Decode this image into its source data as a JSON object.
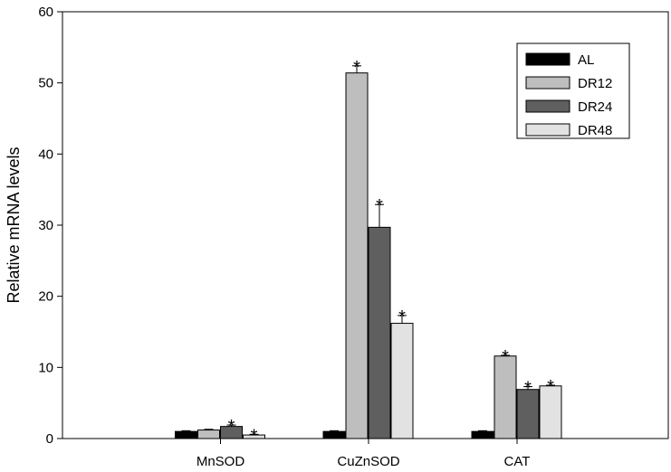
{
  "chart_data": {
    "type": "bar",
    "title": "",
    "xlabel": "",
    "ylabel": "Relative mRNA levels",
    "ylim": [
      0,
      60
    ],
    "yticks": [
      0,
      10,
      20,
      30,
      40,
      50,
      60
    ],
    "grid": false,
    "legend_position": "top-right",
    "categories": [
      "MnSOD",
      "CuZnSOD",
      "CAT"
    ],
    "significance_marker": "*",
    "series": [
      {
        "name": "AL",
        "color": "#000000",
        "values": [
          1.0,
          1.0,
          1.0
        ],
        "errors": [
          0.1,
          0.1,
          0.1
        ],
        "significant": [
          false,
          false,
          false
        ]
      },
      {
        "name": "DR12",
        "color": "#bebebe",
        "values": [
          1.2,
          51.4,
          11.6
        ],
        "errors": [
          0.1,
          1.0,
          0.1
        ],
        "significant": [
          false,
          true,
          true
        ]
      },
      {
        "name": "DR24",
        "color": "#5f5f5f",
        "values": [
          1.7,
          29.7,
          6.9
        ],
        "errors": [
          0.2,
          3.2,
          0.4
        ],
        "significant": [
          true,
          true,
          true
        ]
      },
      {
        "name": "DR48",
        "color": "#e2e2e2",
        "values": [
          0.5,
          16.2,
          7.4
        ],
        "errors": [
          0.1,
          1.1,
          0.1
        ],
        "significant": [
          true,
          true,
          true
        ]
      }
    ]
  }
}
